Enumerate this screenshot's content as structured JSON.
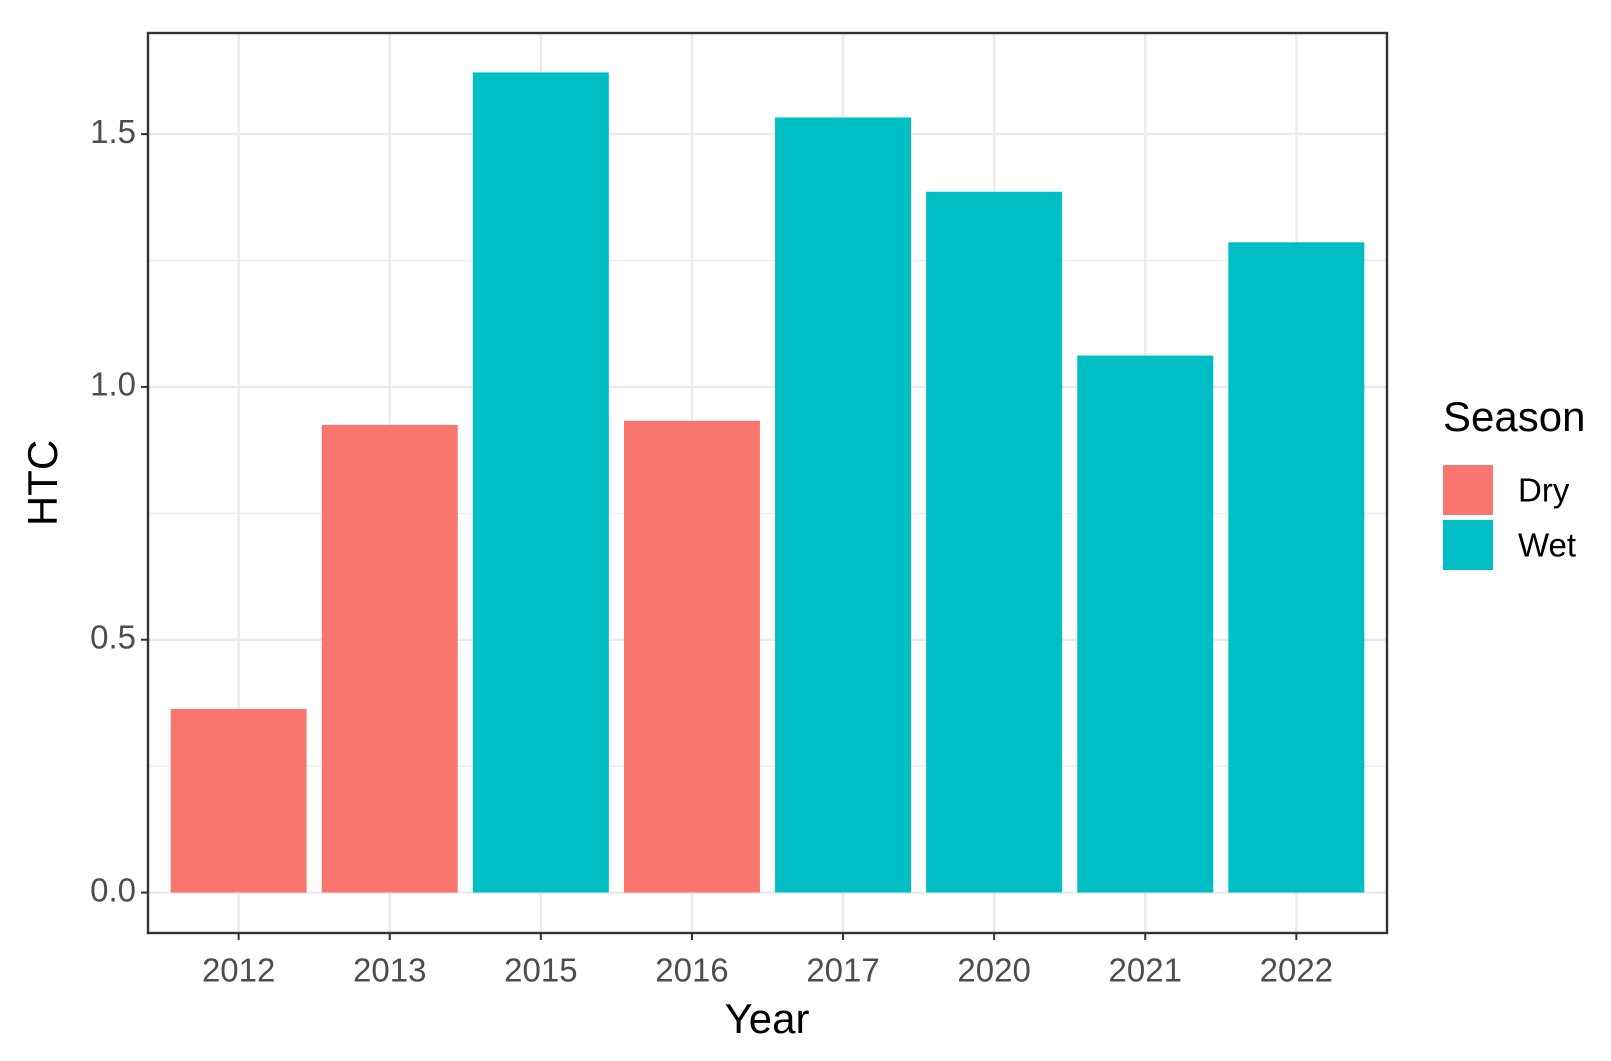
{
  "chart_data": {
    "type": "bar",
    "x_label": "Year",
    "y_label": "HTC",
    "legend_title": "Season",
    "categories": [
      "2012",
      "2013",
      "2015",
      "2016",
      "2017",
      "2020",
      "2021",
      "2022"
    ],
    "series": [
      {
        "name": "Dry",
        "color": "#F8766D",
        "values": [
          0.363,
          0.925,
          null,
          0.933,
          null,
          null,
          null,
          null
        ]
      },
      {
        "name": "Wet",
        "color": "#00BFC4",
        "values": [
          null,
          null,
          1.622,
          null,
          1.533,
          1.386,
          1.062,
          1.286
        ]
      }
    ],
    "ylim": [
      -0.08,
      1.7
    ],
    "yticks": [
      {
        "value": 0,
        "label": "0.0"
      },
      0.5,
      {
        "value": 1,
        "label": "1.0"
      },
      1.5
    ],
    "grid": true,
    "legend": "right"
  }
}
